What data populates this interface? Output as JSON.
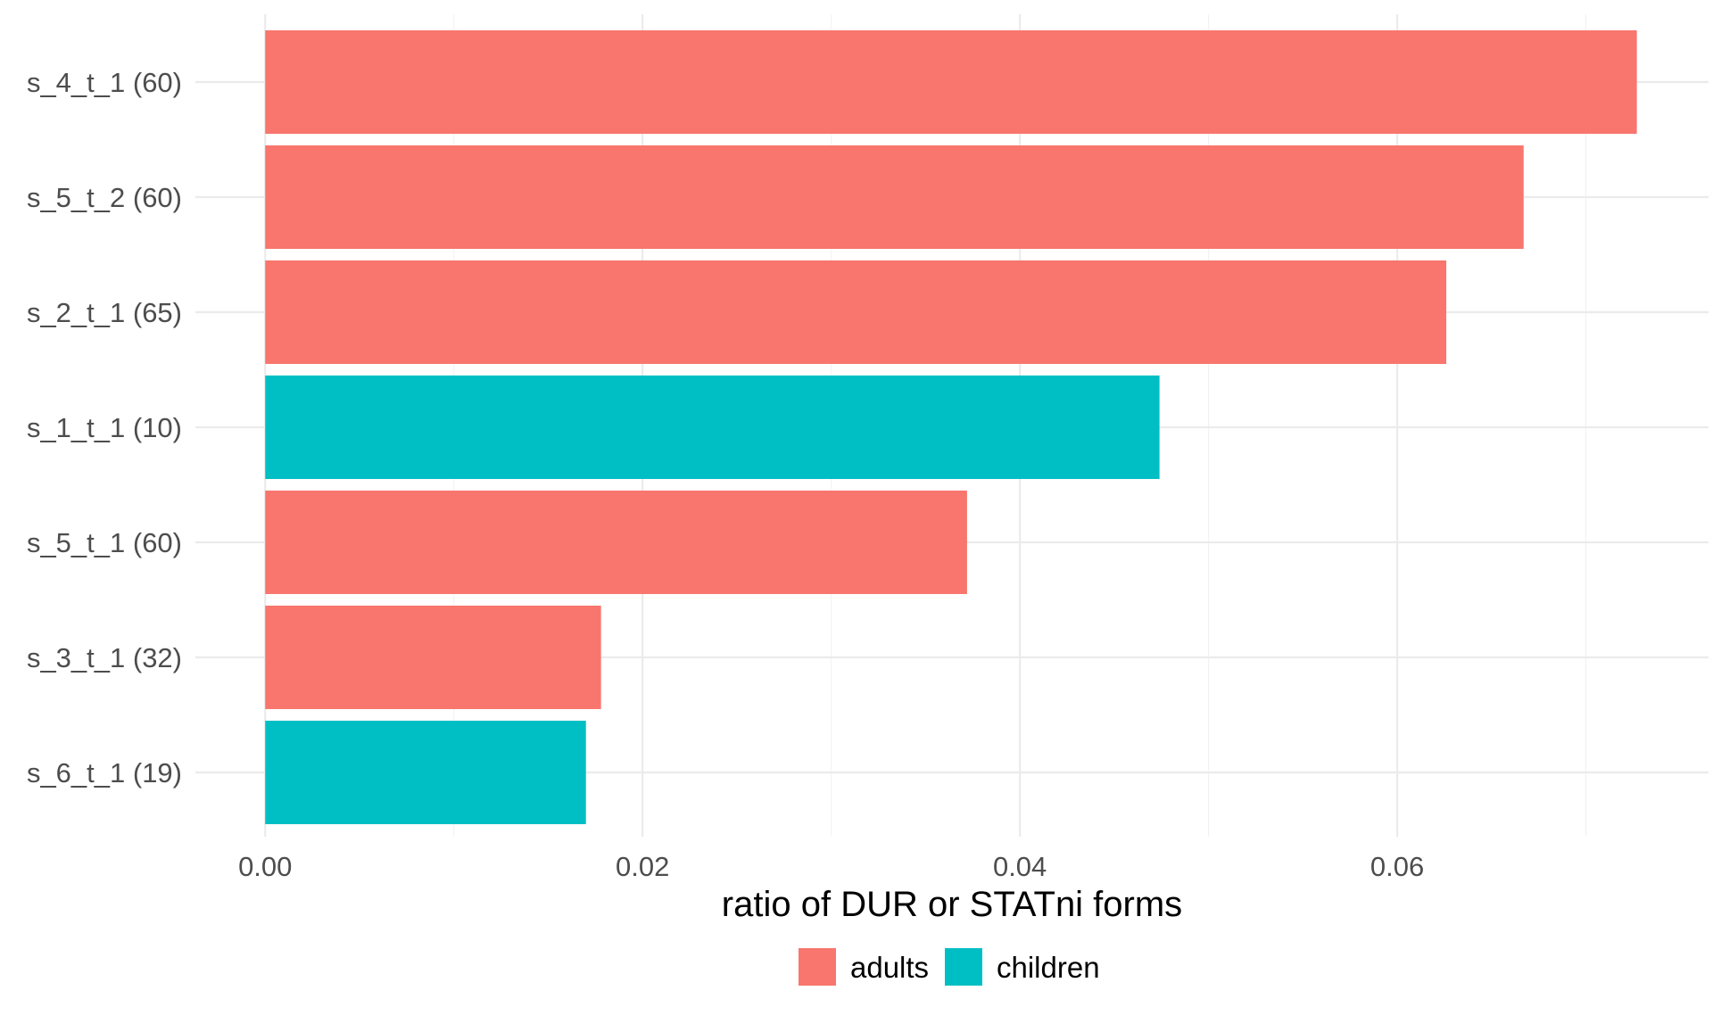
{
  "chart_data": {
    "type": "bar",
    "orientation": "horizontal",
    "categories": [
      "s_4_t_1 (60)",
      "s_5_t_2 (60)",
      "s_2_t_1 (65)",
      "s_1_t_1 (10)",
      "s_5_t_1 (60)",
      "s_3_t_1 (32)",
      "s_6_t_1 (19)"
    ],
    "values": [
      0.0727,
      0.0667,
      0.0626,
      0.0474,
      0.0372,
      0.0178,
      0.017
    ],
    "groups": [
      "adults",
      "adults",
      "adults",
      "children",
      "adults",
      "adults",
      "children"
    ],
    "xlabel": "ratio of DUR or STATni forms",
    "ylabel": "",
    "title": "",
    "xlim": [
      -0.0037,
      0.0765
    ],
    "x_ticks": [
      0.0,
      0.02,
      0.04,
      0.06
    ],
    "x_tick_labels": [
      "0.00",
      "0.02",
      "0.04",
      "0.06"
    ],
    "grid": true,
    "legend": {
      "position": "bottom",
      "entries": [
        {
          "name": "adults",
          "color": "#F8766D"
        },
        {
          "name": "children",
          "color": "#00BFC4"
        }
      ]
    }
  }
}
